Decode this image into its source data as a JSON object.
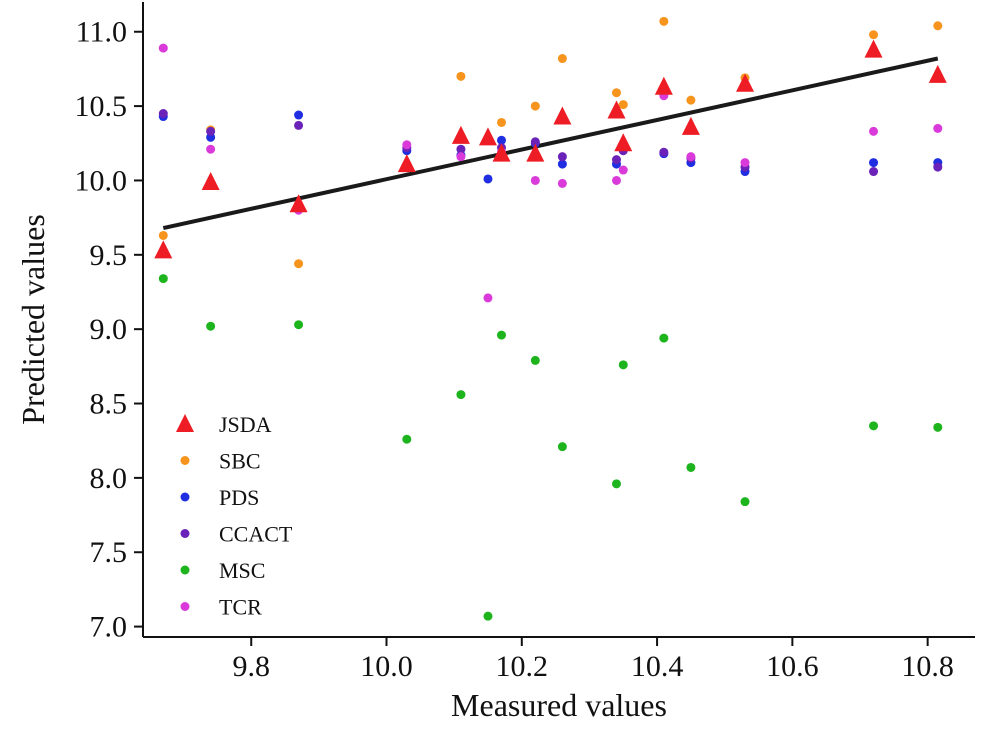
{
  "chart_data": {
    "type": "scatter",
    "xlabel": "Measured values",
    "ylabel": "Predicted values",
    "xlim": [
      9.64,
      10.87
    ],
    "ylim": [
      6.93,
      11.2
    ],
    "xticks": [
      {
        "value": 9.8,
        "label": "9.8"
      },
      {
        "value": 10.0,
        "label": "10.0"
      },
      {
        "value": 10.2,
        "label": "10.2"
      },
      {
        "value": 10.4,
        "label": "10.4"
      },
      {
        "value": 10.6,
        "label": "10.6"
      },
      {
        "value": 10.8,
        "label": "10.8"
      }
    ],
    "yticks": [
      {
        "value": 7.0,
        "label": "7.0"
      },
      {
        "value": 7.5,
        "label": "7.5"
      },
      {
        "value": 8.0,
        "label": "8.0"
      },
      {
        "value": 8.5,
        "label": "8.5"
      },
      {
        "value": 9.0,
        "label": "9.0"
      },
      {
        "value": 9.5,
        "label": "9.5"
      },
      {
        "value": 10.0,
        "label": "10.0"
      },
      {
        "value": 10.5,
        "label": "10.5"
      },
      {
        "value": 11.0,
        "label": "11.0"
      }
    ],
    "grid": false,
    "legend_position": "bottom-left",
    "fit_line": {
      "x": [
        9.67,
        10.815
      ],
      "y": [
        9.68,
        10.82
      ],
      "color": "#1a1a1a"
    },
    "series": [
      {
        "name": "SBC",
        "marker": "circle",
        "color": "#f7941d",
        "points": [
          [
            9.67,
            9.63
          ],
          [
            9.74,
            10.34
          ],
          [
            9.87,
            9.44
          ],
          [
            10.11,
            10.7
          ],
          [
            10.17,
            10.39
          ],
          [
            10.22,
            10.5
          ],
          [
            10.26,
            10.82
          ],
          [
            10.34,
            10.59
          ],
          [
            10.35,
            10.51
          ],
          [
            10.41,
            11.07
          ],
          [
            10.45,
            10.54
          ],
          [
            10.53,
            10.69
          ],
          [
            10.72,
            10.98
          ],
          [
            10.815,
            11.04
          ]
        ]
      },
      {
        "name": "PDS",
        "marker": "circle",
        "color": "#1f2ee0",
        "points": [
          [
            9.67,
            10.43
          ],
          [
            9.74,
            10.29
          ],
          [
            9.87,
            10.44
          ],
          [
            10.03,
            10.2
          ],
          [
            10.11,
            10.17
          ],
          [
            10.15,
            10.01
          ],
          [
            10.17,
            10.27
          ],
          [
            10.22,
            10.25
          ],
          [
            10.26,
            10.11
          ],
          [
            10.34,
            10.11
          ],
          [
            10.35,
            10.24
          ],
          [
            10.41,
            10.18
          ],
          [
            10.45,
            10.12
          ],
          [
            10.53,
            10.06
          ],
          [
            10.72,
            10.12
          ],
          [
            10.815,
            10.12
          ]
        ]
      },
      {
        "name": "CCACT",
        "marker": "circle",
        "color": "#6a22b8",
        "points": [
          [
            9.67,
            10.45
          ],
          [
            9.74,
            10.33
          ],
          [
            9.87,
            10.37
          ],
          [
            10.03,
            10.22
          ],
          [
            10.11,
            10.21
          ],
          [
            10.17,
            10.22
          ],
          [
            10.22,
            10.26
          ],
          [
            10.26,
            10.16
          ],
          [
            10.34,
            10.14
          ],
          [
            10.35,
            10.2
          ],
          [
            10.41,
            10.19
          ],
          [
            10.45,
            10.15
          ],
          [
            10.53,
            10.09
          ],
          [
            10.72,
            10.06
          ],
          [
            10.815,
            10.09
          ]
        ]
      },
      {
        "name": "MSC",
        "marker": "circle",
        "color": "#1db41d",
        "points": [
          [
            9.67,
            9.34
          ],
          [
            9.74,
            9.02
          ],
          [
            9.87,
            9.03
          ],
          [
            10.03,
            8.26
          ],
          [
            10.11,
            8.56
          ],
          [
            10.15,
            7.07
          ],
          [
            10.17,
            8.96
          ],
          [
            10.22,
            8.79
          ],
          [
            10.26,
            8.21
          ],
          [
            10.34,
            7.96
          ],
          [
            10.35,
            8.76
          ],
          [
            10.41,
            8.94
          ],
          [
            10.45,
            8.07
          ],
          [
            10.53,
            7.84
          ],
          [
            10.72,
            8.35
          ],
          [
            10.815,
            8.34
          ]
        ]
      },
      {
        "name": "TCR",
        "marker": "circle",
        "color": "#d93ad9",
        "points": [
          [
            9.67,
            10.89
          ],
          [
            9.74,
            10.21
          ],
          [
            9.87,
            9.8
          ],
          [
            10.03,
            10.24
          ],
          [
            10.11,
            10.16
          ],
          [
            10.15,
            9.21
          ],
          [
            10.17,
            10.19
          ],
          [
            10.22,
            10.0
          ],
          [
            10.26,
            9.98
          ],
          [
            10.34,
            10.0
          ],
          [
            10.35,
            10.07
          ],
          [
            10.41,
            10.57
          ],
          [
            10.45,
            10.16
          ],
          [
            10.53,
            10.12
          ],
          [
            10.72,
            10.33
          ],
          [
            10.815,
            10.35
          ]
        ]
      },
      {
        "name": "JSDA",
        "marker": "triangle",
        "color": "#ee1c24",
        "points": [
          [
            9.67,
            9.53
          ],
          [
            9.74,
            9.99
          ],
          [
            9.87,
            9.84
          ],
          [
            10.03,
            10.11
          ],
          [
            10.11,
            10.3
          ],
          [
            10.15,
            10.29
          ],
          [
            10.17,
            10.18
          ],
          [
            10.22,
            10.18
          ],
          [
            10.26,
            10.43
          ],
          [
            10.34,
            10.47
          ],
          [
            10.35,
            10.25
          ],
          [
            10.41,
            10.63
          ],
          [
            10.45,
            10.36
          ],
          [
            10.53,
            10.65
          ],
          [
            10.72,
            10.88
          ],
          [
            10.815,
            10.71
          ]
        ]
      }
    ],
    "legend": [
      {
        "name": "JSDA",
        "marker": "triangle",
        "color": "#ee1c24"
      },
      {
        "name": "SBC",
        "marker": "circle",
        "color": "#f7941d"
      },
      {
        "name": "PDS",
        "marker": "circle",
        "color": "#1f2ee0"
      },
      {
        "name": "CCACT",
        "marker": "circle",
        "color": "#6a22b8"
      },
      {
        "name": "MSC",
        "marker": "circle",
        "color": "#1db41d"
      },
      {
        "name": "TCR",
        "marker": "circle",
        "color": "#d93ad9"
      }
    ]
  }
}
